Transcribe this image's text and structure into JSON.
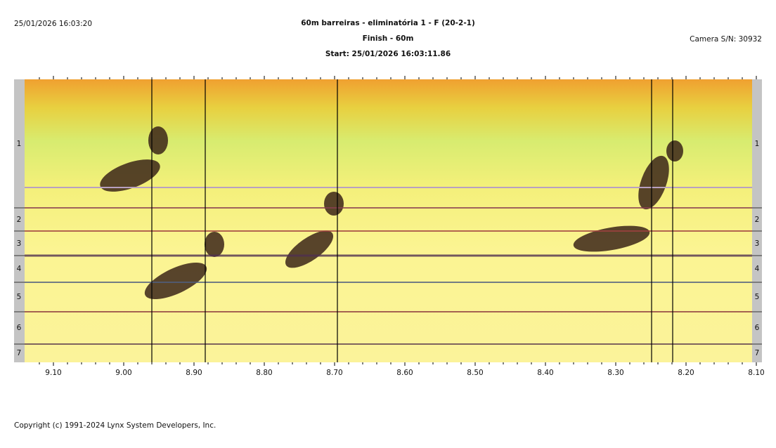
{
  "header": {
    "timestamp": "25/01/2026 16:03:20",
    "title": "60m barreiras - eliminatória 1 - F (20-2-1)",
    "event": "Finish - 60m",
    "start": "Start: 25/01/2026 16:03:11.86",
    "camera": "Camera S/N: 30932"
  },
  "time_axis": {
    "xlim": [
      9.141,
      8.106
    ],
    "ticks": [
      {
        "value": 9.1,
        "label": "9.10"
      },
      {
        "value": 9.0,
        "label": "9.00"
      },
      {
        "value": 8.9,
        "label": "8.90"
      },
      {
        "value": 8.8,
        "label": "8.80"
      },
      {
        "value": 8.7,
        "label": "8.70"
      },
      {
        "value": 8.6,
        "label": "8.60"
      },
      {
        "value": 8.5,
        "label": "8.50"
      },
      {
        "value": 8.4,
        "label": "8.40"
      },
      {
        "value": 8.3,
        "label": "8.30"
      },
      {
        "value": 8.2,
        "label": "8.20"
      },
      {
        "value": 8.1,
        "label": "8.10"
      }
    ],
    "minor_ticks": [
      9.12,
      9.08,
      9.06,
      9.04,
      9.02,
      8.98,
      8.96,
      8.94,
      8.92,
      8.88,
      8.86,
      8.84,
      8.82,
      8.78,
      8.76,
      8.74,
      8.72,
      8.68,
      8.66,
      8.64,
      8.62,
      8.58,
      8.56,
      8.54,
      8.52,
      8.48,
      8.46,
      8.44,
      8.42,
      8.38,
      8.36,
      8.34,
      8.32,
      8.28,
      8.26,
      8.24,
      8.22,
      8.18,
      8.16,
      8.14,
      8.12
    ],
    "time_lines": [
      8.96,
      8.884,
      8.696,
      8.249,
      8.219
    ]
  },
  "lanes": [
    "1",
    "2",
    "3",
    "4",
    "5",
    "6",
    "7"
  ],
  "footer": "Copyright (c) 1991-2024 Lynx System Developers, Inc."
}
